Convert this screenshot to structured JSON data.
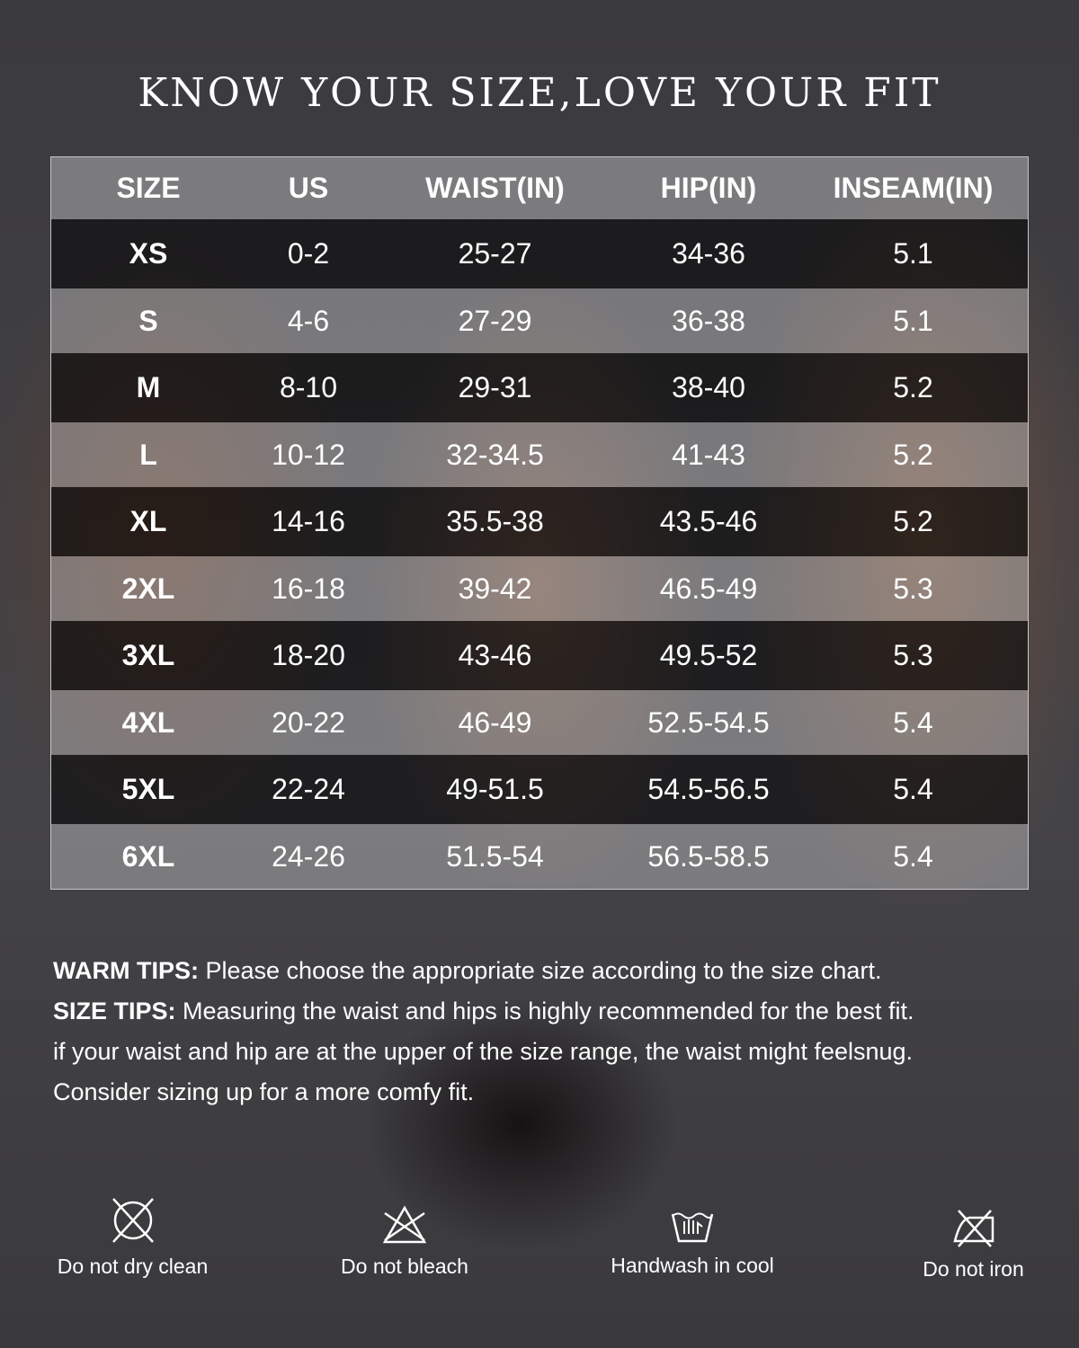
{
  "title": "KNOW YOUR SIZE,LOVE YOUR FIT",
  "table": {
    "headers": [
      "SIZE",
      "US",
      "WAIST(IN)",
      "HIP(IN)",
      "INSEAM(IN)"
    ],
    "rows": [
      [
        "XS",
        "0-2",
        "25-27",
        "34-36",
        "5.1"
      ],
      [
        "S",
        "4-6",
        "27-29",
        "36-38",
        "5.1"
      ],
      [
        "M",
        "8-10",
        "29-31",
        "38-40",
        "5.2"
      ],
      [
        "L",
        "10-12",
        "32-34.5",
        "41-43",
        "5.2"
      ],
      [
        "XL",
        "14-16",
        "35.5-38",
        "43.5-46",
        "5.2"
      ],
      [
        "2XL",
        "16-18",
        "39-42",
        "46.5-49",
        "5.3"
      ],
      [
        "3XL",
        "18-20",
        "43-46",
        "49.5-52",
        "5.3"
      ],
      [
        "4XL",
        "20-22",
        "46-49",
        "52.5-54.5",
        "5.4"
      ],
      [
        "5XL",
        "22-24",
        "49-51.5",
        "54.5-56.5",
        "5.4"
      ],
      [
        "6XL",
        "24-26",
        "51.5-54",
        "56.5-58.5",
        "5.4"
      ]
    ]
  },
  "tips": {
    "warm_label": "WARM TIPS:",
    "warm_text": " Please choose the appropriate size according to the size chart.",
    "size_label": "SIZE TIPS:",
    "size_text": " Measuring the waist and hips is highly recommended for the best fit.",
    "line3": "if your waist and hip are at the upper of the size range, the waist might feelsnug.",
    "line4": "Consider sizing up for a more comfy fit."
  },
  "care": [
    {
      "icon": "no-dry-clean-icon",
      "label": "Do not dry clean"
    },
    {
      "icon": "no-bleach-icon",
      "label": "Do not bleach"
    },
    {
      "icon": "handwash-icon",
      "label": "Handwash in cool"
    },
    {
      "icon": "no-iron-icon",
      "label": "Do not iron"
    }
  ]
}
